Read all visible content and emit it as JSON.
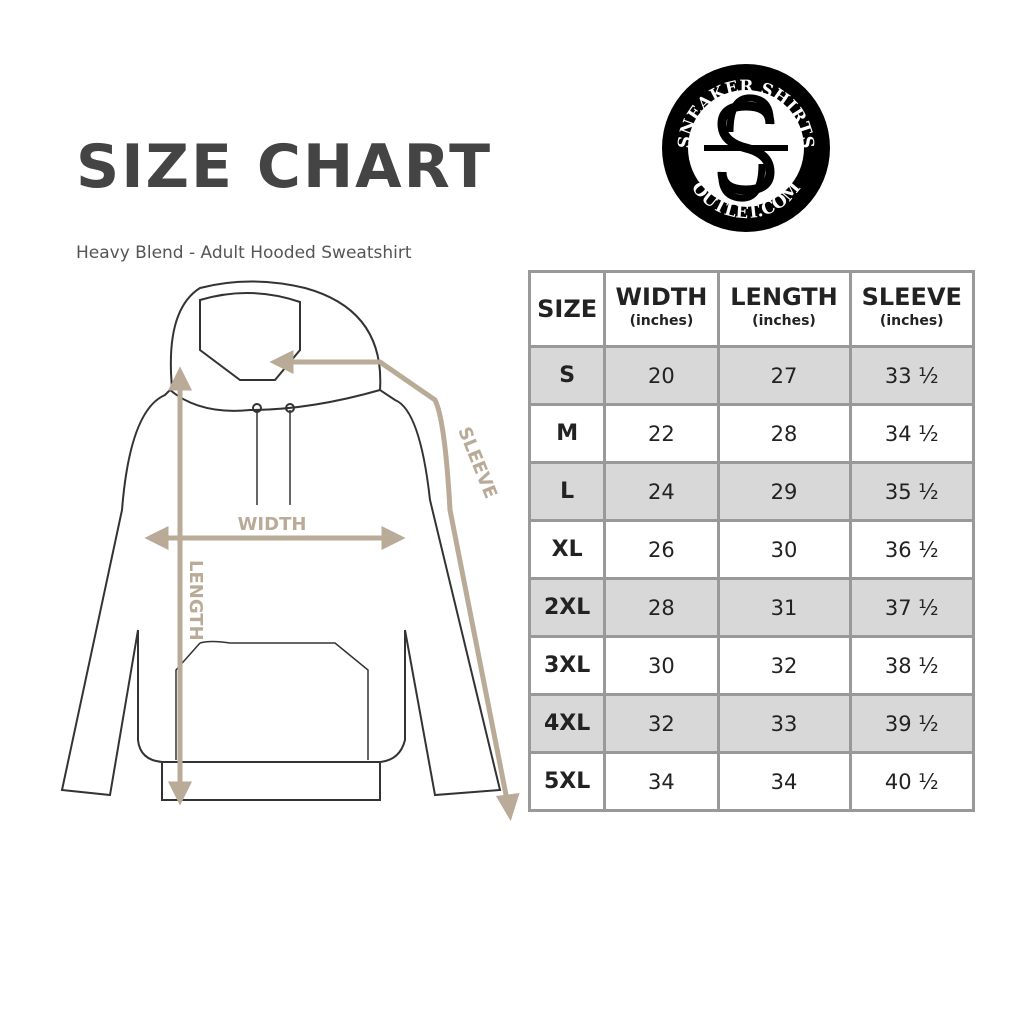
{
  "title": "SIZE CHART",
  "subtitle": "Heavy Blend - Adult Hooded Sweatshirt",
  "logo": {
    "top_text": "SNEAKER SHIRTS",
    "bottom_text": "OUTLET.COM"
  },
  "diagram_labels": {
    "width": "WIDTH",
    "length": "LENGTH",
    "sleeve": "SLEEVE"
  },
  "accent_color": "#b9ab97",
  "table": {
    "headers": [
      {
        "label": "SIZE",
        "unit": ""
      },
      {
        "label": "WIDTH",
        "unit": "(inches)"
      },
      {
        "label": "LENGTH",
        "unit": "(inches)"
      },
      {
        "label": "SLEEVE",
        "unit": "(inches)"
      }
    ],
    "rows": [
      [
        "S",
        "20",
        "27",
        "33 ½"
      ],
      [
        "M",
        "22",
        "28",
        "34 ½"
      ],
      [
        "L",
        "24",
        "29",
        "35 ½"
      ],
      [
        "XL",
        "26",
        "30",
        "36 ½"
      ],
      [
        "2XL",
        "28",
        "31",
        "37 ½"
      ],
      [
        "3XL",
        "30",
        "32",
        "38 ½"
      ],
      [
        "4XL",
        "32",
        "33",
        "39 ½"
      ],
      [
        "5XL",
        "34",
        "34",
        "40 ½"
      ]
    ]
  }
}
